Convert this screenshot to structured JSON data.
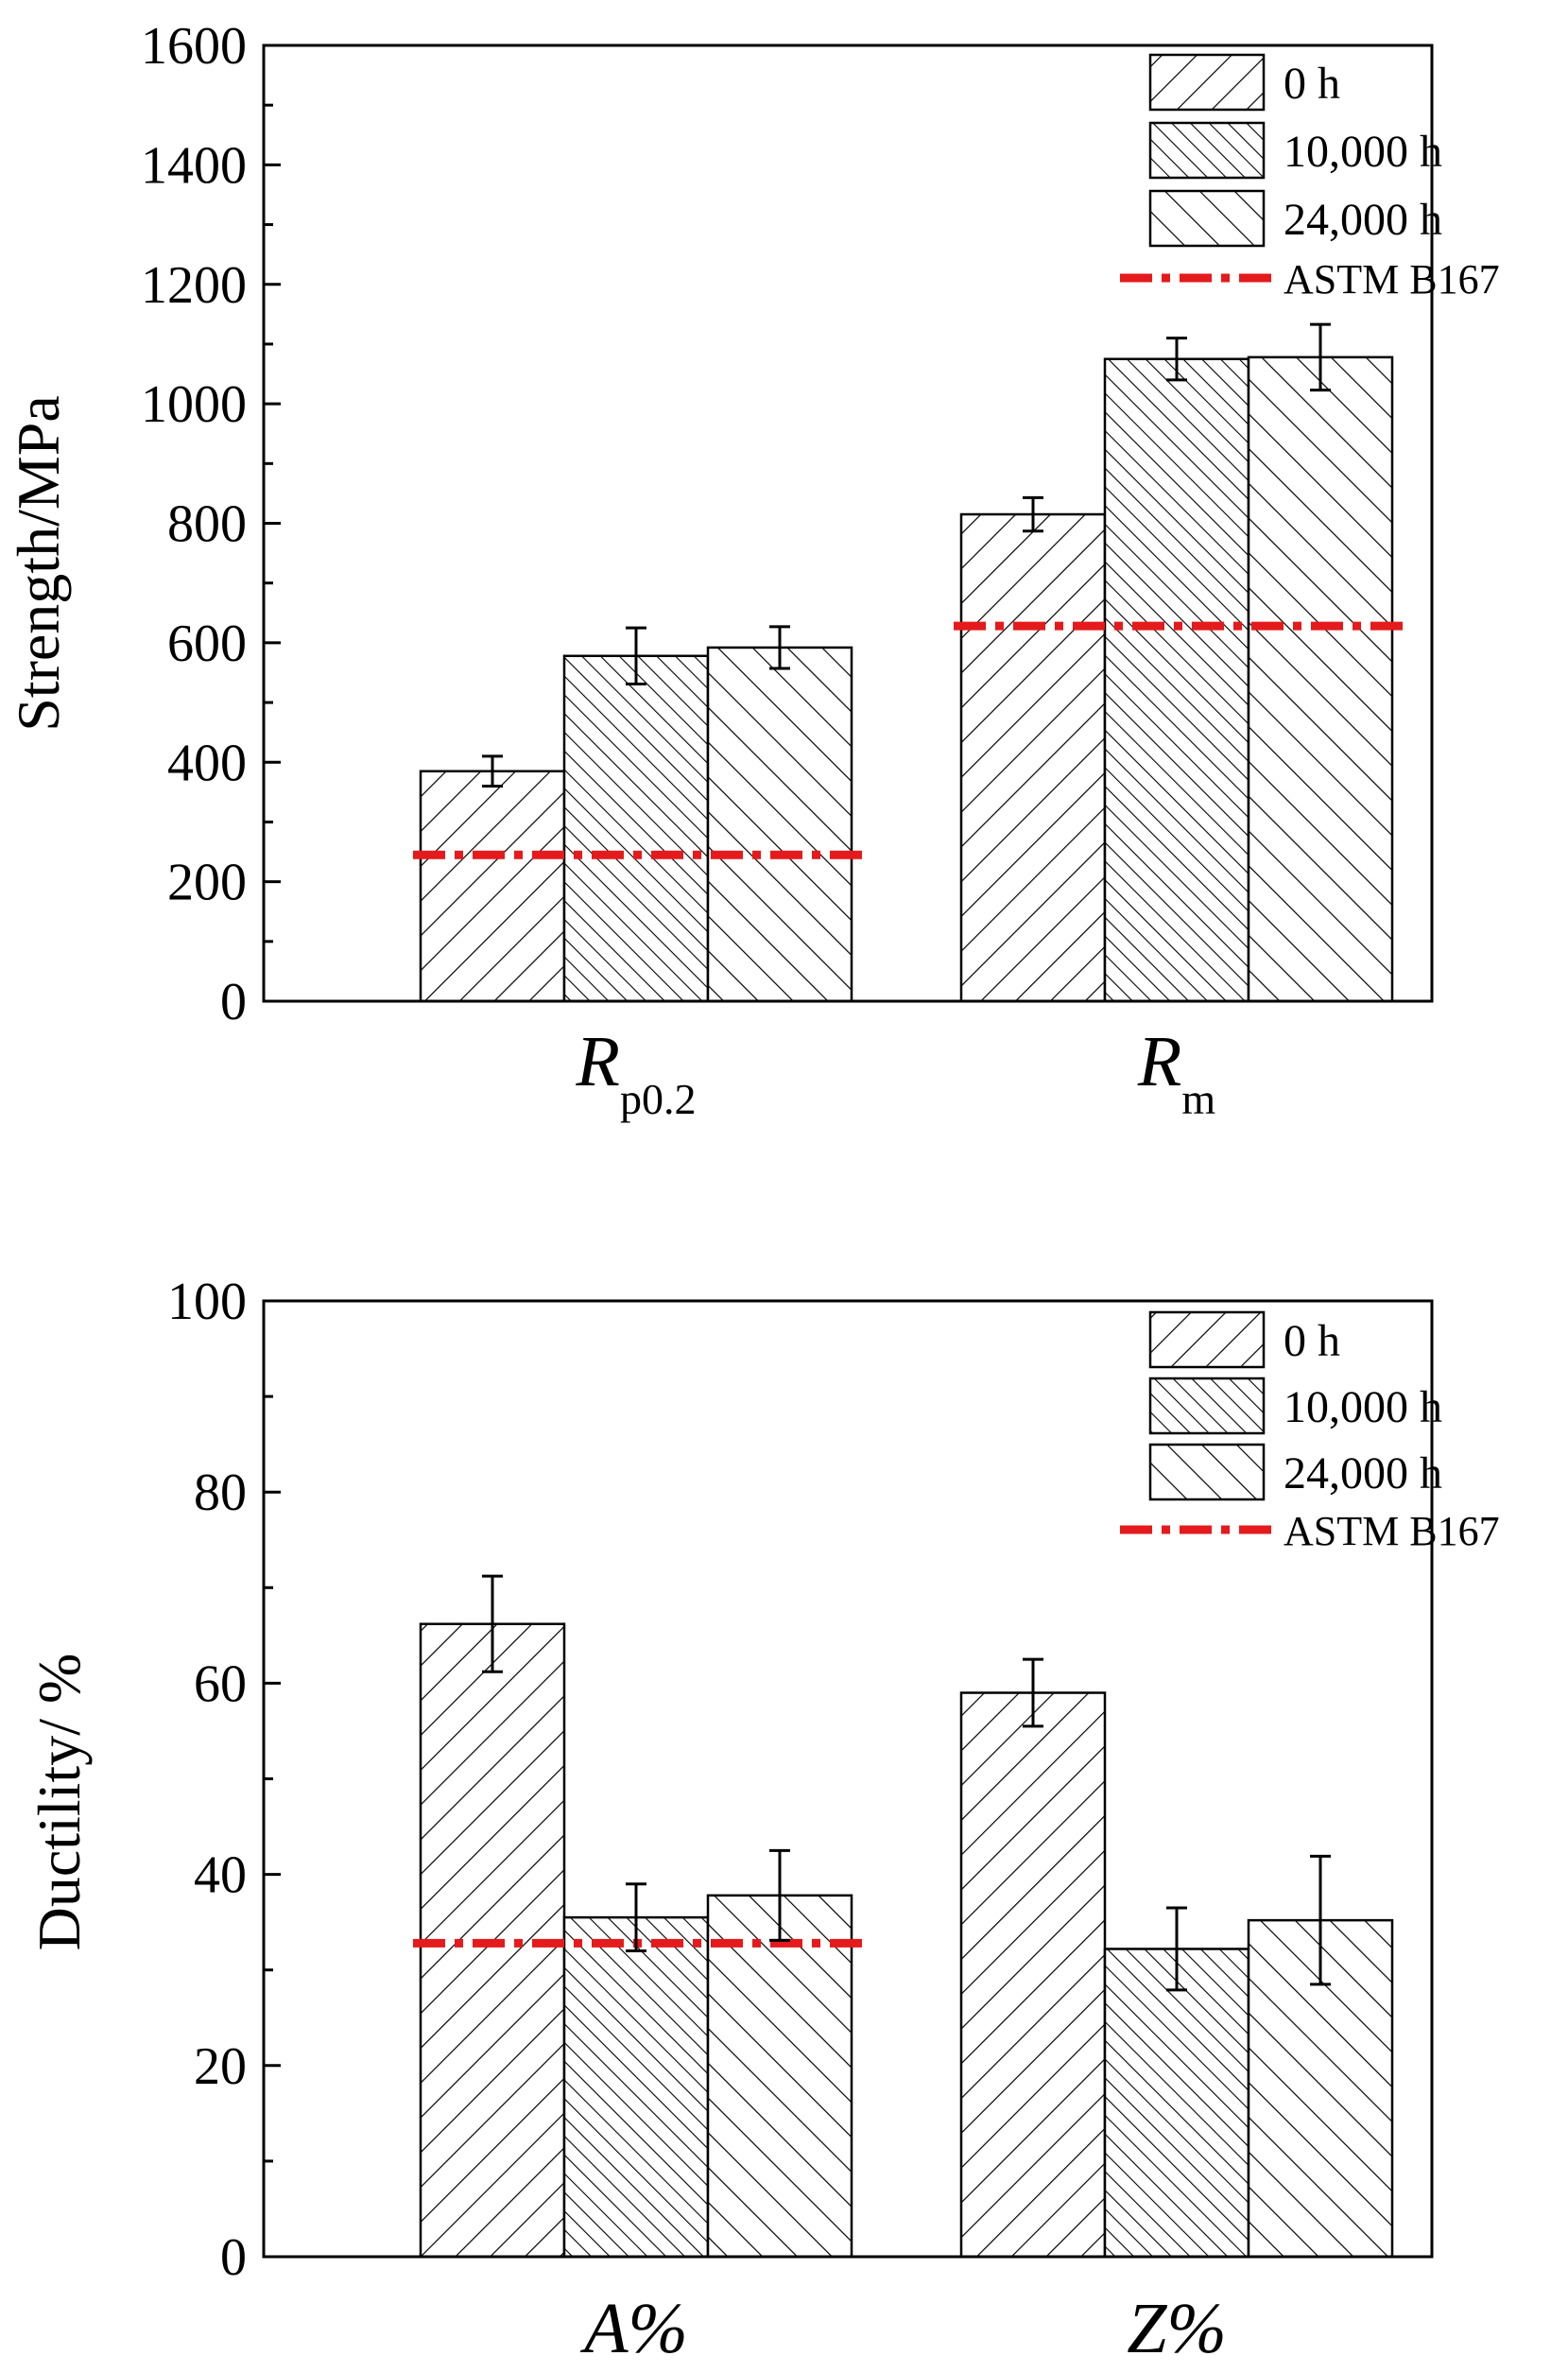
{
  "colors": {
    "axis": "#000000",
    "bar_fill": "#ffffff",
    "hatch": "#000000",
    "reference_line": "#e41a1c"
  },
  "chart_data": [
    {
      "type": "bar",
      "ylabel": "Strength/MPa",
      "ylim": [
        0,
        1600
      ],
      "yticks": [
        "0",
        "200",
        "400",
        "600",
        "800",
        "1000",
        "1200",
        "1400",
        "1600"
      ],
      "categories": [
        {
          "main": "R",
          "sub": "p0.2"
        },
        {
          "main": "R",
          "sub": "m"
        }
      ],
      "series": [
        {
          "name": "0 h",
          "hatch": "diag-right",
          "values": [
            385,
            815
          ],
          "errors": [
            25,
            28
          ]
        },
        {
          "name": "10,000 h",
          "hatch": "diag-left-dense",
          "values": [
            578,
            1075
          ],
          "errors": [
            47,
            35
          ]
        },
        {
          "name": "24,000 h",
          "hatch": "diag-left",
          "values": [
            592,
            1078
          ],
          "errors": [
            35,
            55
          ]
        }
      ],
      "reference": {
        "name": "ASTM B167",
        "values": [
          245,
          628
        ]
      },
      "legend_position": "top-right"
    },
    {
      "type": "bar",
      "ylabel": "Ductility/ %",
      "ylim": [
        0,
        100
      ],
      "yticks": [
        "0",
        "20",
        "40",
        "60",
        "80",
        "100"
      ],
      "categories": [
        {
          "main": "A%",
          "sub": ""
        },
        {
          "main": "Z%",
          "sub": ""
        }
      ],
      "series": [
        {
          "name": "0 h",
          "hatch": "diag-right",
          "values": [
            66.2,
            59.0
          ],
          "errors": [
            5.0,
            3.5
          ]
        },
        {
          "name": "10,000 h",
          "hatch": "diag-left-dense",
          "values": [
            35.5,
            32.2
          ],
          "errors": [
            3.5,
            4.3
          ]
        },
        {
          "name": "24,000 h",
          "hatch": "diag-left",
          "values": [
            37.8,
            35.2
          ],
          "errors": [
            4.7,
            6.7
          ]
        }
      ],
      "reference": {
        "name": "ASTM B167",
        "values": [
          32.8
        ]
      },
      "legend_position": "top-right"
    }
  ]
}
